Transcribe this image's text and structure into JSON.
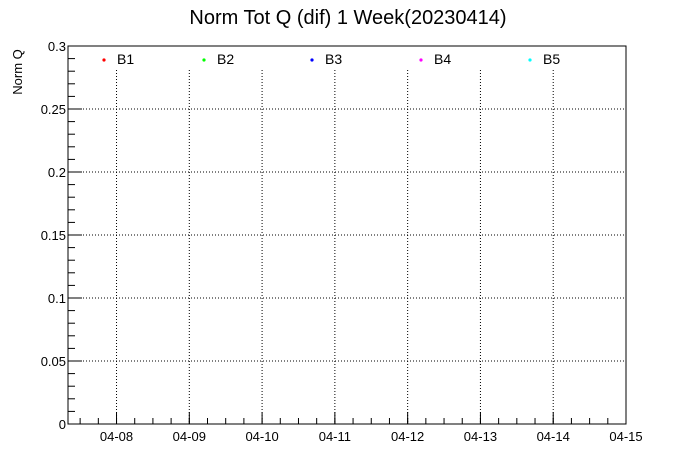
{
  "chart_data": {
    "type": "scatter",
    "title": "Norm Tot Q (dif) 1 Week(20230414)",
    "xlabel": "",
    "ylabel": "Norm Q",
    "x_type": "date",
    "xlim": [
      "2023-04-07T08:00",
      "2023-04-15T00:00"
    ],
    "x_ticks": [
      {
        "value": "2023-04-08",
        "label": "04-08"
      },
      {
        "value": "2023-04-09",
        "label": "04-09"
      },
      {
        "value": "2023-04-10",
        "label": "04-10"
      },
      {
        "value": "2023-04-11",
        "label": "04-11"
      },
      {
        "value": "2023-04-12",
        "label": "04-12"
      },
      {
        "value": "2023-04-13",
        "label": "04-13"
      },
      {
        "value": "2023-04-14",
        "label": "04-14"
      },
      {
        "value": "2023-04-15",
        "label": "04-15"
      }
    ],
    "ylim": [
      0,
      0.3
    ],
    "y_ticks": [
      {
        "value": 0,
        "label": "0"
      },
      {
        "value": 0.05,
        "label": "0.05"
      },
      {
        "value": 0.1,
        "label": "0.1"
      },
      {
        "value": 0.15,
        "label": "0.15"
      },
      {
        "value": 0.2,
        "label": "0.2"
      },
      {
        "value": 0.25,
        "label": "0.25"
      },
      {
        "value": 0.3,
        "label": "0.3"
      }
    ],
    "grid": true,
    "legend_position": "top",
    "series": [
      {
        "name": "B1",
        "color": "#ff0000",
        "points": []
      },
      {
        "name": "B2",
        "color": "#00ff00",
        "points": []
      },
      {
        "name": "B3",
        "color": "#0000ff",
        "points": []
      },
      {
        "name": "B4",
        "color": "#ff00ff",
        "points": []
      },
      {
        "name": "B5",
        "color": "#00ffff",
        "points": []
      }
    ]
  }
}
